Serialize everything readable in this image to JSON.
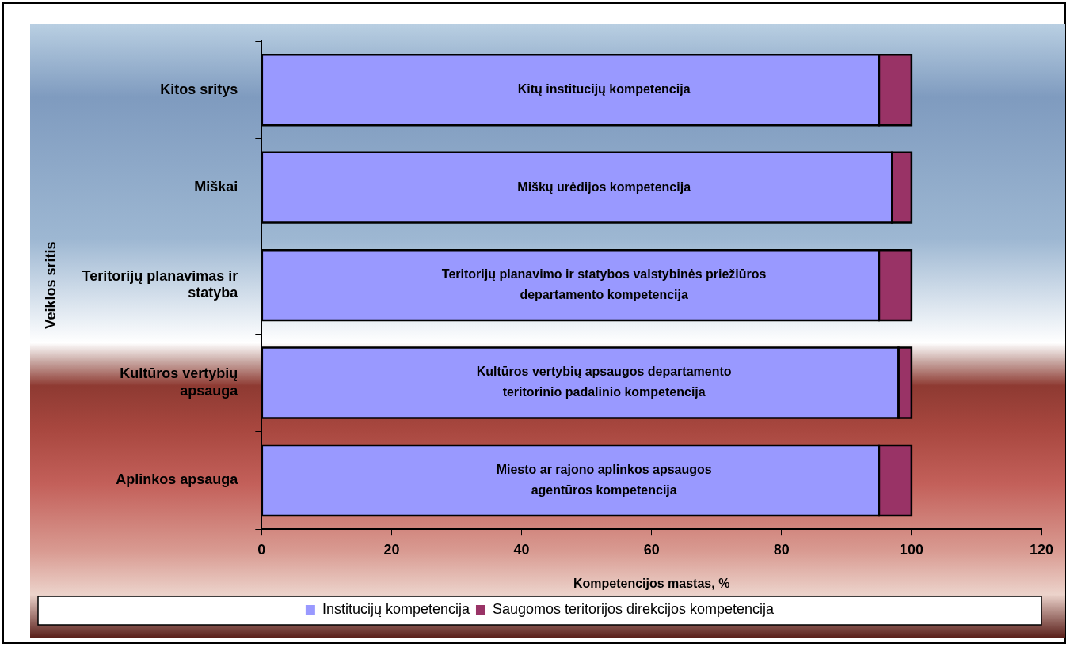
{
  "chart_data": {
    "type": "bar",
    "orientation": "horizontal",
    "stacked": true,
    "xlabel": "Kompetencijos mastas, %",
    "ylabel": "Veiklos sritis",
    "categories": [
      "Kitos sritys",
      "Miškai",
      "Teritorijų planavimas ir statyba",
      "Kultūros vertybių apsauga",
      "Aplinkos apsauga"
    ],
    "series": [
      {
        "name": "Institucijų kompetencija",
        "color": "#9999ff",
        "values": [
          95,
          97,
          95,
          98,
          95
        ]
      },
      {
        "name": "Saugomos teritorijos direkcijos kompetencija",
        "color": "#993366",
        "values": [
          5,
          3,
          5,
          2,
          5
        ]
      }
    ],
    "xlim": [
      0,
      120
    ],
    "xticks": [
      0,
      20,
      40,
      60,
      80,
      100,
      120
    ],
    "legend": "bottom",
    "annotations": [
      "Kitų institucijų kompetencija",
      "Miškų urėdijos kompetencija",
      "Teritorijų planavimo ir statybos valstybinės priežiūros\ndepartamento kompetencija",
      "Kultūros vertybių apsaugos departamento\nteritorinio padalinio kompetencija",
      "Miesto ar rajono aplinkos apsaugos\nagentūros kompetencija"
    ]
  }
}
